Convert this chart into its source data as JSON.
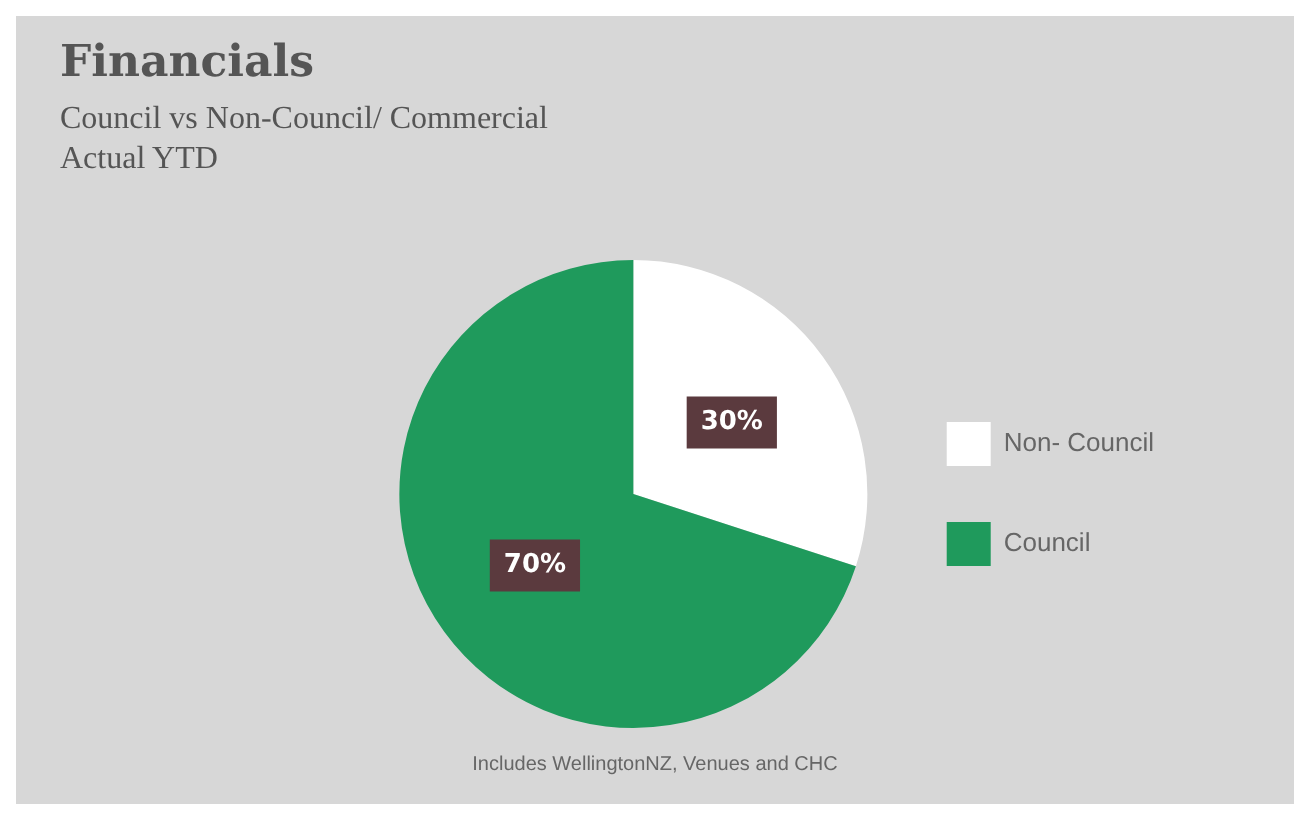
{
  "chart_data": {
    "type": "pie",
    "title": "Financials",
    "subtitle": "Council vs Non-Council/ Commercial\nActual YTD",
    "categories": [
      "Non- Council",
      "Council"
    ],
    "values": [
      30,
      70
    ],
    "colors": [
      "#ffffff",
      "#1f9a5c"
    ],
    "value_labels": [
      "30%",
      "70%"
    ],
    "legend": "right",
    "annotations": [
      "Includes WellingtonNZ, Venues and CHC"
    ]
  }
}
